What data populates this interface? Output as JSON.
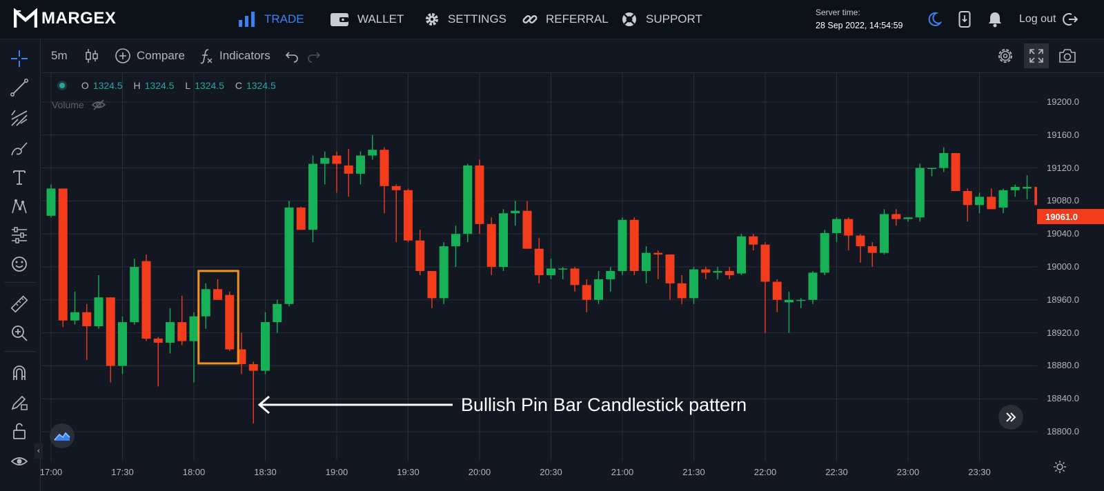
{
  "app": {
    "brand": "MARGEX"
  },
  "nav": [
    {
      "label": "TRADE",
      "icon": "bars-chart-icon",
      "active": true
    },
    {
      "label": "WALLET",
      "icon": "wallet-icon",
      "active": false
    },
    {
      "label": "SETTINGS",
      "icon": "gear-icon",
      "active": false
    },
    {
      "label": "REFERRAL",
      "icon": "link-icon",
      "active": false
    },
    {
      "label": "SUPPORT",
      "icon": "lifebuoy-icon",
      "active": false
    }
  ],
  "server": {
    "label": "Server time:",
    "value": "28 Sep 2022, 14:54:59"
  },
  "header_actions": {
    "logout": "Log out"
  },
  "toolbar": {
    "interval": "5m",
    "compare": "Compare",
    "indicators": "Indicators"
  },
  "legend": {
    "o_label": "O",
    "o": "1324.5",
    "h_label": "H",
    "h": "1324.5",
    "l_label": "L",
    "l": "1324.5",
    "c_label": "C",
    "c": "1324.5",
    "volume": "Volume"
  },
  "annotation": {
    "text": "Bullish Pin Bar Candlestick pattern"
  },
  "colors": {
    "up": "#16b157",
    "down": "#f23c1c",
    "accent": "#3b82f6",
    "highlight": "#f5921e",
    "current": "#f23c1c"
  },
  "chart_data": {
    "type": "candlestick",
    "interval": "5m",
    "current_price": "19061.0",
    "y_ticks": [
      "19200.0",
      "19160.0",
      "19120.0",
      "19080.0",
      "19040.0",
      "19000.0",
      "18960.0",
      "18920.0",
      "18880.0",
      "18840.0",
      "18800.0"
    ],
    "y_tick_values": [
      19200,
      19160,
      19120,
      19080,
      19040,
      19000,
      18960,
      18920,
      18880,
      18840,
      18800
    ],
    "x_ticks": [
      "17:00",
      "17:30",
      "18:00",
      "18:30",
      "19:00",
      "19:30",
      "20:00",
      "20:30",
      "21:00",
      "21:30",
      "22:00",
      "22:30",
      "23:00",
      "23:30"
    ],
    "ylim": [
      18765,
      19235
    ],
    "highlight_range": [
      13,
      15
    ],
    "candles": [
      {
        "o": 19062,
        "h": 19100,
        "l": 19060,
        "c": 19095
      },
      {
        "o": 19095,
        "h": 19095,
        "l": 18927,
        "c": 18935
      },
      {
        "o": 18935,
        "h": 18970,
        "l": 18930,
        "c": 18945
      },
      {
        "o": 18945,
        "h": 18955,
        "l": 18887,
        "c": 18928
      },
      {
        "o": 18928,
        "h": 18990,
        "l": 18925,
        "c": 18963
      },
      {
        "o": 18963,
        "h": 18963,
        "l": 18860,
        "c": 18880
      },
      {
        "o": 18880,
        "h": 18940,
        "l": 18870,
        "c": 18933
      },
      {
        "o": 18933,
        "h": 19010,
        "l": 18930,
        "c": 19000
      },
      {
        "o": 19007,
        "h": 19015,
        "l": 18910,
        "c": 18913
      },
      {
        "o": 18913,
        "h": 18915,
        "l": 18855,
        "c": 18908
      },
      {
        "o": 18908,
        "h": 18950,
        "l": 18895,
        "c": 18933
      },
      {
        "o": 18933,
        "h": 18965,
        "l": 18905,
        "c": 18910
      },
      {
        "o": 18910,
        "h": 18945,
        "l": 18860,
        "c": 18940
      },
      {
        "o": 18940,
        "h": 18980,
        "l": 18925,
        "c": 18973
      },
      {
        "o": 18973,
        "h": 18985,
        "l": 18960,
        "c": 18960
      },
      {
        "o": 18966,
        "h": 18970,
        "l": 18898,
        "c": 18900
      },
      {
        "o": 18900,
        "h": 18920,
        "l": 18870,
        "c": 18882
      },
      {
        "o": 18882,
        "h": 18885,
        "l": 18810,
        "c": 18874
      },
      {
        "o": 18874,
        "h": 18945,
        "l": 18870,
        "c": 18933
      },
      {
        "o": 18933,
        "h": 18960,
        "l": 18920,
        "c": 18955
      },
      {
        "o": 18955,
        "h": 19080,
        "l": 18952,
        "c": 19072
      },
      {
        "o": 19072,
        "h": 19073,
        "l": 19045,
        "c": 19045
      },
      {
        "o": 19045,
        "h": 19135,
        "l": 19030,
        "c": 19125
      },
      {
        "o": 19125,
        "h": 19140,
        "l": 19100,
        "c": 19132
      },
      {
        "o": 19135,
        "h": 19140,
        "l": 19090,
        "c": 19125
      },
      {
        "o": 19123,
        "h": 19143,
        "l": 19085,
        "c": 19113
      },
      {
        "o": 19113,
        "h": 19140,
        "l": 19100,
        "c": 19135
      },
      {
        "o": 19135,
        "h": 19160,
        "l": 19130,
        "c": 19142
      },
      {
        "o": 19142,
        "h": 19145,
        "l": 19065,
        "c": 19098
      },
      {
        "o": 19098,
        "h": 19100,
        "l": 19030,
        "c": 19093
      },
      {
        "o": 19093,
        "h": 19095,
        "l": 19030,
        "c": 19032
      },
      {
        "o": 19032,
        "h": 19045,
        "l": 18990,
        "c": 18995
      },
      {
        "o": 18995,
        "h": 18995,
        "l": 18950,
        "c": 18962
      },
      {
        "o": 18962,
        "h": 19030,
        "l": 18955,
        "c": 19025
      },
      {
        "o": 19025,
        "h": 19050,
        "l": 19000,
        "c": 19040
      },
      {
        "o": 19040,
        "h": 19125,
        "l": 19030,
        "c": 19123
      },
      {
        "o": 19123,
        "h": 19130,
        "l": 19040,
        "c": 19052
      },
      {
        "o": 19052,
        "h": 19060,
        "l": 18990,
        "c": 19000
      },
      {
        "o": 19000,
        "h": 19070,
        "l": 18995,
        "c": 19065
      },
      {
        "o": 19065,
        "h": 19080,
        "l": 19050,
        "c": 19068
      },
      {
        "o": 19068,
        "h": 19080,
        "l": 19025,
        "c": 19022
      },
      {
        "o": 19022,
        "h": 19035,
        "l": 18980,
        "c": 18990
      },
      {
        "o": 18990,
        "h": 19010,
        "l": 18985,
        "c": 18998
      },
      {
        "o": 18998,
        "h": 19000,
        "l": 18985,
        "c": 18998
      },
      {
        "o": 18998,
        "h": 19000,
        "l": 18970,
        "c": 18978
      },
      {
        "o": 18978,
        "h": 18985,
        "l": 18945,
        "c": 18960
      },
      {
        "o": 18960,
        "h": 18995,
        "l": 18955,
        "c": 18985
      },
      {
        "o": 18985,
        "h": 19000,
        "l": 18970,
        "c": 18995
      },
      {
        "o": 18995,
        "h": 19060,
        "l": 18990,
        "c": 19057
      },
      {
        "o": 19057,
        "h": 19060,
        "l": 18990,
        "c": 18995
      },
      {
        "o": 18995,
        "h": 19025,
        "l": 18980,
        "c": 19017
      },
      {
        "o": 19017,
        "h": 19020,
        "l": 18985,
        "c": 19015
      },
      {
        "o": 19015,
        "h": 19015,
        "l": 18960,
        "c": 18980
      },
      {
        "o": 18980,
        "h": 18990,
        "l": 18955,
        "c": 18962
      },
      {
        "o": 18962,
        "h": 19000,
        "l": 18955,
        "c": 18997
      },
      {
        "o": 18997,
        "h": 19000,
        "l": 18985,
        "c": 18993
      },
      {
        "o": 18993,
        "h": 19000,
        "l": 18985,
        "c": 18995
      },
      {
        "o": 18995,
        "h": 19000,
        "l": 18985,
        "c": 18990
      },
      {
        "o": 18992,
        "h": 19040,
        "l": 18990,
        "c": 19037
      },
      {
        "o": 19037,
        "h": 19040,
        "l": 19020,
        "c": 19027
      },
      {
        "o": 19027,
        "h": 19030,
        "l": 18920,
        "c": 18982
      },
      {
        "o": 18982,
        "h": 18985,
        "l": 18945,
        "c": 18960
      },
      {
        "o": 18957,
        "h": 18970,
        "l": 18920,
        "c": 18960
      },
      {
        "o": 18960,
        "h": 18962,
        "l": 18950,
        "c": 18960
      },
      {
        "o": 18960,
        "h": 18995,
        "l": 18955,
        "c": 18993
      },
      {
        "o": 18993,
        "h": 19045,
        "l": 18990,
        "c": 19041
      },
      {
        "o": 19041,
        "h": 19060,
        "l": 19030,
        "c": 19058
      },
      {
        "o": 19058,
        "h": 19060,
        "l": 19020,
        "c": 19038
      },
      {
        "o": 19038,
        "h": 19040,
        "l": 19005,
        "c": 19025
      },
      {
        "o": 19025,
        "h": 19030,
        "l": 19000,
        "c": 19017
      },
      {
        "o": 19017,
        "h": 19070,
        "l": 19015,
        "c": 19064
      },
      {
        "o": 19064,
        "h": 19070,
        "l": 19050,
        "c": 19058
      },
      {
        "o": 19058,
        "h": 19060,
        "l": 19055,
        "c": 19060
      },
      {
        "o": 19060,
        "h": 19125,
        "l": 19055,
        "c": 19120
      },
      {
        "o": 19120,
        "h": 19120,
        "l": 19110,
        "c": 19120
      },
      {
        "o": 19120,
        "h": 19145,
        "l": 19115,
        "c": 19138
      },
      {
        "o": 19138,
        "h": 19138,
        "l": 19092,
        "c": 19092
      },
      {
        "o": 19092,
        "h": 19095,
        "l": 19055,
        "c": 19075
      },
      {
        "o": 19075,
        "h": 19090,
        "l": 19065,
        "c": 19085
      },
      {
        "o": 19085,
        "h": 19095,
        "l": 19070,
        "c": 19070
      },
      {
        "o": 19072,
        "h": 19095,
        "l": 19065,
        "c": 19093
      },
      {
        "o": 19093,
        "h": 19100,
        "l": 19085,
        "c": 19097
      },
      {
        "o": 19095,
        "h": 19111,
        "l": 19082,
        "c": 19097
      },
      {
        "o": 19097,
        "h": 19100,
        "l": 19075,
        "c": 19075
      },
      {
        "o": 19075,
        "h": 19080,
        "l": 19055,
        "c": 19060
      }
    ]
  }
}
